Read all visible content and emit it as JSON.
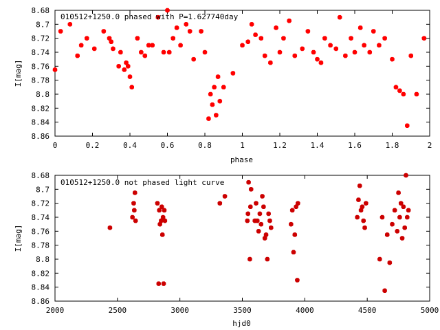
{
  "chart_data": [
    {
      "type": "scatter",
      "title": "010512+1250.0 phased with P=1.627740day",
      "xlabel": "phase",
      "ylabel": "I[mag]",
      "xlim": [
        0,
        2
      ],
      "ylim": [
        8.68,
        8.86
      ],
      "y_inverted": true,
      "xticks": [
        "0",
        "0.2",
        "0.4",
        "0.6",
        "0.8",
        "1",
        "1.2",
        "1.4",
        "1.6",
        "1.8",
        "2"
      ],
      "yticks": [
        "8.68",
        "8.7",
        "8.72",
        "8.74",
        "8.76",
        "8.78",
        "8.8",
        "8.82",
        "8.84",
        "8.86"
      ],
      "marker_color": "#ff0000",
      "series": [
        {
          "x": [
            0.0,
            0.03,
            0.08,
            0.12,
            0.14,
            0.17,
            0.21,
            0.26,
            0.29,
            0.3,
            0.31,
            0.34,
            0.35,
            0.37,
            0.38,
            0.39,
            0.4,
            0.41,
            0.44,
            0.46,
            0.48,
            0.5,
            0.52,
            0.55,
            0.58,
            0.6,
            0.61,
            0.63,
            0.65,
            0.67,
            0.7,
            0.72,
            0.74,
            0.78,
            0.8,
            0.82,
            0.83,
            0.84,
            0.85,
            0.86,
            0.87,
            0.88,
            0.9,
            0.95,
            1.0,
            1.03,
            1.05,
            1.07,
            1.1,
            1.12,
            1.15,
            1.18,
            1.2,
            1.22,
            1.25,
            1.28,
            1.32,
            1.35,
            1.38,
            1.4,
            1.42,
            1.44,
            1.47,
            1.5,
            1.52,
            1.55,
            1.58,
            1.6,
            1.63,
            1.65,
            1.68,
            1.7,
            1.73,
            1.76,
            1.8,
            1.82,
            1.84,
            1.86,
            1.88,
            1.9,
            1.93,
            1.97
          ],
          "y": [
            8.765,
            8.71,
            8.7,
            8.745,
            8.73,
            8.72,
            8.735,
            8.71,
            8.72,
            8.725,
            8.735,
            8.76,
            8.74,
            8.765,
            8.755,
            8.76,
            8.775,
            8.79,
            8.72,
            8.74,
            8.745,
            8.73,
            8.73,
            8.69,
            8.74,
            8.68,
            8.74,
            8.72,
            8.705,
            8.73,
            8.7,
            8.71,
            8.75,
            8.71,
            8.74,
            8.835,
            8.8,
            8.815,
            8.79,
            8.83,
            8.775,
            8.81,
            8.79,
            8.77,
            8.73,
            8.725,
            8.7,
            8.715,
            8.72,
            8.745,
            8.755,
            8.705,
            8.74,
            8.72,
            8.695,
            8.745,
            8.735,
            8.71,
            8.74,
            8.75,
            8.755,
            8.72,
            8.73,
            8.735,
            8.69,
            8.745,
            8.72,
            8.74,
            8.705,
            8.73,
            8.74,
            8.71,
            8.73,
            8.72,
            8.75,
            8.79,
            8.795,
            8.8,
            8.845,
            8.745,
            8.8,
            8.72
          ]
        }
      ]
    },
    {
      "type": "scatter",
      "title": "010512+1250.0 not phased light curve",
      "xlabel": "hjd0",
      "ylabel": "I[mag]",
      "xlim": [
        2000,
        5000
      ],
      "ylim": [
        8.68,
        8.86
      ],
      "y_inverted": true,
      "xticks": [
        "2000",
        "2500",
        "3000",
        "3500",
        "4000",
        "4500",
        "5000"
      ],
      "yticks": [
        "8.68",
        "8.7",
        "8.72",
        "8.74",
        "8.76",
        "8.78",
        "8.8",
        "8.82",
        "8.84",
        "8.86"
      ],
      "marker_color": "#cc0000",
      "series": [
        {
          "x": [
            2440,
            2620,
            2630,
            2635,
            2640,
            2645,
            2820,
            2830,
            2835,
            2840,
            2850,
            2855,
            2860,
            2865,
            2870,
            2875,
            2880,
            3320,
            3360,
            3540,
            3545,
            3550,
            3560,
            3565,
            3570,
            3600,
            3610,
            3620,
            3630,
            3640,
            3650,
            3660,
            3670,
            3680,
            3690,
            3700,
            3710,
            3720,
            3730,
            3890,
            3900,
            3910,
            3920,
            3930,
            3940,
            3945,
            4420,
            4430,
            4440,
            4450,
            4460,
            4470,
            4480,
            4490,
            4600,
            4620,
            4640,
            4660,
            4680,
            4700,
            4720,
            4740,
            4750,
            4760,
            4770,
            4780,
            4790,
            4800,
            4810,
            4820,
            4830
          ],
          "y": [
            8.755,
            8.74,
            8.72,
            8.73,
            8.705,
            8.745,
            8.72,
            8.835,
            8.73,
            8.75,
            8.745,
            8.725,
            8.765,
            8.74,
            8.835,
            8.73,
            8.745,
            8.72,
            8.71,
            8.745,
            8.735,
            8.69,
            8.8,
            8.725,
            8.7,
            8.745,
            8.72,
            8.745,
            8.76,
            8.735,
            8.75,
            8.71,
            8.725,
            8.77,
            8.765,
            8.8,
            8.735,
            8.745,
            8.755,
            8.75,
            8.73,
            8.79,
            8.765,
            8.725,
            8.83,
            8.72,
            8.74,
            8.715,
            8.695,
            8.73,
            8.725,
            8.745,
            8.755,
            8.72,
            8.8,
            8.74,
            8.845,
            8.765,
            8.805,
            8.75,
            8.73,
            8.76,
            8.705,
            8.74,
            8.72,
            8.77,
            8.725,
            8.755,
            8.68,
            8.74,
            8.73
          ]
        }
      ]
    }
  ]
}
